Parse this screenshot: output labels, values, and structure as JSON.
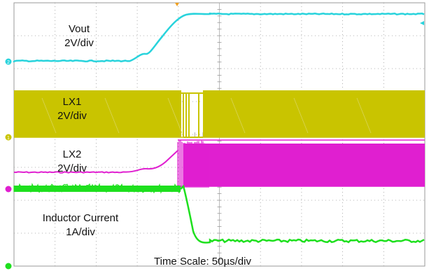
{
  "chart_data": {
    "type": "line",
    "time_scale": "Time Scale: 50µs/div",
    "grid": true,
    "channels": [
      {
        "marker": "2",
        "title": "Vout",
        "scale": "2V/div",
        "color": "#28d3dc"
      },
      {
        "marker": "1",
        "title": "LX1",
        "scale": "2V/div",
        "color": "#c9c400"
      },
      {
        "marker": "",
        "title": "LX2",
        "scale": "2V/div",
        "color": "#e01fd0"
      },
      {
        "marker": "",
        "title": "Inductor Current",
        "scale": "1A/div",
        "color": "#1ee01e"
      }
    ]
  },
  "colors": {
    "grid": "#9a9a9a",
    "trigger_marker": "#f0a020",
    "background": "#ffffff"
  }
}
